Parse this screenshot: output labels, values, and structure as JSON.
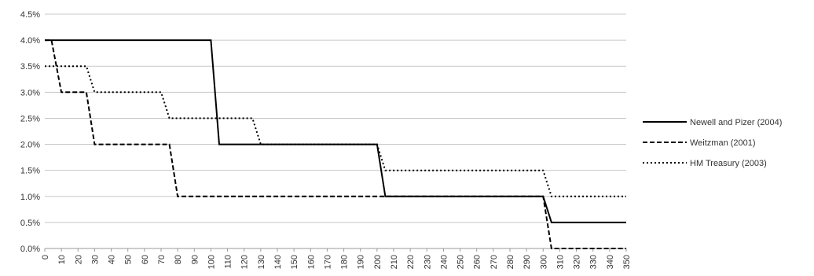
{
  "chart_data": {
    "type": "line",
    "title": "",
    "xlabel": "",
    "ylabel": "",
    "x_ticks": [
      0,
      10,
      20,
      30,
      40,
      50,
      60,
      70,
      80,
      90,
      100,
      110,
      120,
      130,
      140,
      150,
      160,
      170,
      180,
      190,
      200,
      210,
      220,
      230,
      240,
      250,
      260,
      270,
      280,
      290,
      300,
      310,
      320,
      330,
      340,
      350
    ],
    "y_ticks": [
      "0.0%",
      "0.5%",
      "1.0%",
      "1.5%",
      "2.0%",
      "2.5%",
      "3.0%",
      "3.5%",
      "4.0%",
      "4.5%"
    ],
    "xlim": [
      0,
      350
    ],
    "ylim": [
      0,
      4.5
    ],
    "grid": "horizontal",
    "legend_position": "right",
    "series": [
      {
        "name": "Newell and Pizer (2004)",
        "style": "solid",
        "x": [
          0,
          100,
          105,
          200,
          205,
          300,
          305,
          350
        ],
        "y": [
          4.0,
          4.0,
          2.0,
          2.0,
          1.0,
          1.0,
          0.5,
          0.5
        ]
      },
      {
        "name": "Weitzman (2001)",
        "style": "dashed",
        "x": [
          0,
          4,
          10,
          25,
          30,
          75,
          80,
          200,
          300,
          305,
          350
        ],
        "y": [
          4.0,
          4.0,
          3.0,
          3.0,
          2.0,
          2.0,
          1.0,
          1.0,
          1.0,
          0.0,
          0.0
        ]
      },
      {
        "name": "HM Treasury (2003)",
        "style": "dotted",
        "x": [
          0,
          25,
          30,
          70,
          75,
          125,
          130,
          200,
          205,
          300,
          305,
          350
        ],
        "y": [
          3.5,
          3.5,
          3.0,
          3.0,
          2.5,
          2.5,
          2.0,
          2.0,
          1.5,
          1.5,
          1.0,
          1.0
        ]
      }
    ]
  }
}
